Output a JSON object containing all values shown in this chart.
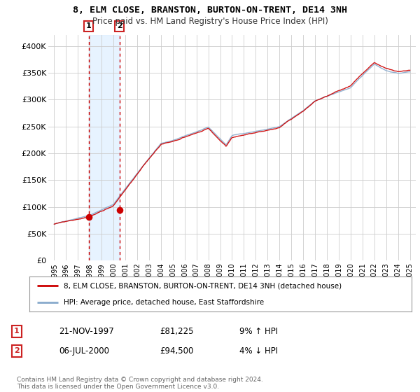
{
  "title": "8, ELM CLOSE, BRANSTON, BURTON-ON-TRENT, DE14 3NH",
  "subtitle": "Price paid vs. HM Land Registry's House Price Index (HPI)",
  "ylabel_ticks": [
    "£0",
    "£50K",
    "£100K",
    "£150K",
    "£200K",
    "£250K",
    "£300K",
    "£350K",
    "£400K"
  ],
  "ytick_values": [
    0,
    50000,
    100000,
    150000,
    200000,
    250000,
    300000,
    350000,
    400000
  ],
  "ylim": [
    0,
    420000
  ],
  "xlim_start": 1994.5,
  "xlim_end": 2025.5,
  "sale1_x": 1997.9,
  "sale1_y": 81225,
  "sale1_label": "1",
  "sale1_date": "21-NOV-1997",
  "sale1_price": "£81,225",
  "sale1_hpi": "9% ↑ HPI",
  "sale2_x": 2000.5,
  "sale2_y": 94500,
  "sale2_label": "2",
  "sale2_date": "06-JUL-2000",
  "sale2_price": "£94,500",
  "sale2_hpi": "4% ↓ HPI",
  "legend_line1": "8, ELM CLOSE, BRANSTON, BURTON-ON-TRENT, DE14 3NH (detached house)",
  "legend_line2": "HPI: Average price, detached house, East Staffordshire",
  "footer": "Contains HM Land Registry data © Crown copyright and database right 2024.\nThis data is licensed under the Open Government Licence v3.0.",
  "bg_color": "#ffffff",
  "grid_color": "#cccccc",
  "red_line_color": "#cc0000",
  "blue_line_color": "#88aacc",
  "sale_dot_color": "#cc0000",
  "dashed_line_color": "#cc0000",
  "shaded_region_color": "#ddeeff",
  "label_box_color": "#cc2222"
}
